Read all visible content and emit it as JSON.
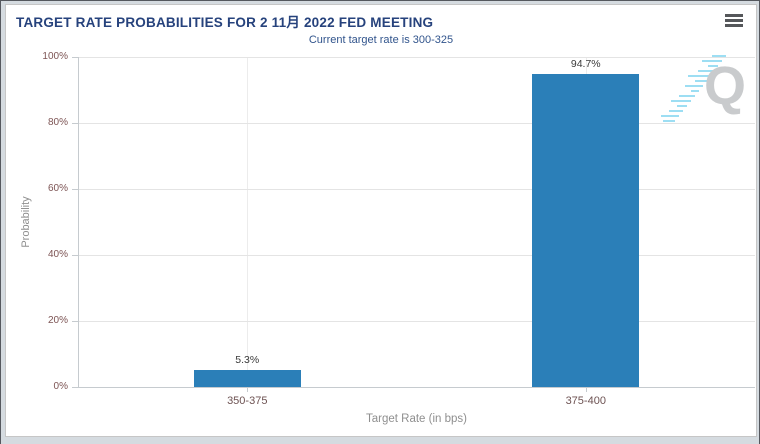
{
  "header": {
    "menu_icon": "hamburger-menu-icon"
  },
  "chart_data": {
    "type": "bar",
    "title": "TARGET RATE PROBABILITIES FOR 2 11月 2022 FED MEETING",
    "subtitle": "Current target rate is 300-325",
    "categories": [
      "350-375",
      "375-400"
    ],
    "values": [
      5.3,
      94.7
    ],
    "data_labels": [
      "5.3%",
      "94.7%"
    ],
    "xlabel": "Target Rate (in bps)",
    "ylabel": "Probability",
    "ylim": [
      0,
      100
    ],
    "ytick_step": 20,
    "ytick_labels": [
      "0%",
      "20%",
      "40%",
      "60%",
      "80%",
      "100%"
    ],
    "grid": true,
    "legend_position": "none",
    "watermark_letter": "Q"
  },
  "colors": {
    "title": "#26427c",
    "subtitle": "#31548c",
    "bar": "#2b7fb8",
    "ytick_label": "#7d5454",
    "xtick_label": "#6d5252",
    "axis_title": "#8f8f8f",
    "data_label": "#3a3a3a",
    "gridline": "#e4e4e4",
    "gridline_vertical": "#ececec",
    "axis_line": "#c6cbcf",
    "watermark_q": "#c9cbcd",
    "watermark_stripe": "#9ddef3",
    "menu_icon": "#55575a",
    "page_margin": "#d5dbe0",
    "outer_border": "#55585e",
    "panel_border": "#c6c6c6"
  }
}
